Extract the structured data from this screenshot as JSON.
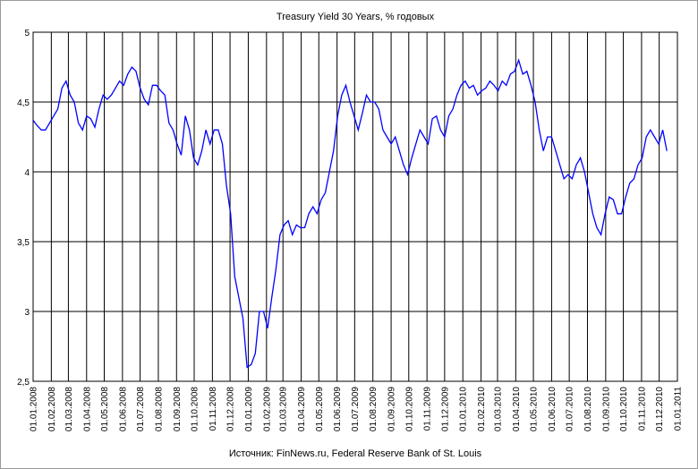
{
  "chart_data": {
    "type": "line",
    "title": "Treasury Yield 30 Years, % годовых",
    "source": "Источник: FinNews.ru, Federal Reserve Bank of St. Louis",
    "ylim": [
      2.5,
      5
    ],
    "y_ticks": [
      "2,5",
      "3",
      "3,5",
      "4",
      "4,5",
      "5"
    ],
    "x_ticks": [
      "01.01.2008",
      "01.02.2008",
      "01.03.2008",
      "01.04.2008",
      "01.05.2008",
      "01.06.2008",
      "01.07.2008",
      "01.08.2008",
      "01.09.2008",
      "01.10.2008",
      "01.11.2008",
      "01.12.2008",
      "01.01.2009",
      "01.02.2009",
      "01.03.2009",
      "01.04.2009",
      "01.05.2009",
      "01.06.2009",
      "01.07.2009",
      "01.08.2009",
      "01.09.2009",
      "01.10.2009",
      "01.11.2009",
      "01.12.2009",
      "01.01.2010",
      "01.02.2010",
      "01.03.2010",
      "01.04.2010",
      "01.05.2010",
      "01.06.2010",
      "01.07.2010",
      "01.08.2010",
      "01.09.2010",
      "01.10.2010",
      "01.11.2010",
      "01.12.2010",
      "01.01.2011"
    ],
    "grid": true,
    "legend": "none",
    "line_color": "#0000ff",
    "series": [
      {
        "x": [
          "2008-01-01",
          "2008-01-08",
          "2008-01-15",
          "2008-01-22",
          "2008-01-29",
          "2008-02-05",
          "2008-02-12",
          "2008-02-19",
          "2008-02-26",
          "2008-03-04",
          "2008-03-11",
          "2008-03-18",
          "2008-03-25",
          "2008-04-01",
          "2008-04-08",
          "2008-04-15",
          "2008-04-22",
          "2008-04-29",
          "2008-05-06",
          "2008-05-13",
          "2008-05-20",
          "2008-05-27",
          "2008-06-03",
          "2008-06-10",
          "2008-06-17",
          "2008-06-24",
          "2008-07-01",
          "2008-07-08",
          "2008-07-15",
          "2008-07-22",
          "2008-07-29",
          "2008-08-05",
          "2008-08-12",
          "2008-08-19",
          "2008-08-26",
          "2008-09-02",
          "2008-09-09",
          "2008-09-16",
          "2008-09-23",
          "2008-09-30",
          "2008-10-07",
          "2008-10-14",
          "2008-10-21",
          "2008-10-28",
          "2008-11-04",
          "2008-11-11",
          "2008-11-18",
          "2008-11-25",
          "2008-12-02",
          "2008-12-09",
          "2008-12-16",
          "2008-12-23",
          "2008-12-30",
          "2009-01-06",
          "2009-01-13",
          "2009-01-20",
          "2009-01-27",
          "2009-02-03",
          "2009-02-10",
          "2009-02-17",
          "2009-02-24",
          "2009-03-03",
          "2009-03-10",
          "2009-03-17",
          "2009-03-24",
          "2009-03-31",
          "2009-04-07",
          "2009-04-14",
          "2009-04-21",
          "2009-04-28",
          "2009-05-05",
          "2009-05-12",
          "2009-05-19",
          "2009-05-26",
          "2009-06-02",
          "2009-06-09",
          "2009-06-16",
          "2009-06-23",
          "2009-06-30",
          "2009-07-07",
          "2009-07-14",
          "2009-07-21",
          "2009-07-28",
          "2009-08-04",
          "2009-08-11",
          "2009-08-18",
          "2009-08-25",
          "2009-09-01",
          "2009-09-08",
          "2009-09-15",
          "2009-09-22",
          "2009-09-29",
          "2009-10-06",
          "2009-10-13",
          "2009-10-20",
          "2009-10-27",
          "2009-11-03",
          "2009-11-10",
          "2009-11-17",
          "2009-11-24",
          "2009-12-01",
          "2009-12-08",
          "2009-12-15",
          "2009-12-22",
          "2009-12-29",
          "2010-01-05",
          "2010-01-12",
          "2010-01-19",
          "2010-01-26",
          "2010-02-02",
          "2010-02-09",
          "2010-02-16",
          "2010-02-23",
          "2010-03-02",
          "2010-03-09",
          "2010-03-16",
          "2010-03-23",
          "2010-03-30",
          "2010-04-06",
          "2010-04-13",
          "2010-04-20",
          "2010-04-27",
          "2010-05-04",
          "2010-05-11",
          "2010-05-18",
          "2010-05-25",
          "2010-06-01",
          "2010-06-08",
          "2010-06-15",
          "2010-06-22",
          "2010-06-29",
          "2010-07-06",
          "2010-07-13",
          "2010-07-20",
          "2010-07-27",
          "2010-08-03",
          "2010-08-10",
          "2010-08-17",
          "2010-08-24",
          "2010-08-31",
          "2010-09-07",
          "2010-09-14",
          "2010-09-21",
          "2010-09-28",
          "2010-10-05",
          "2010-10-12",
          "2010-10-19",
          "2010-10-26",
          "2010-11-02",
          "2010-11-09",
          "2010-11-16",
          "2010-11-23",
          "2010-11-30",
          "2010-12-07",
          "2010-12-14"
        ],
        "values": [
          4.37,
          4.33,
          4.3,
          4.3,
          4.35,
          4.4,
          4.45,
          4.6,
          4.65,
          4.55,
          4.5,
          4.35,
          4.3,
          4.4,
          4.38,
          4.32,
          4.45,
          4.55,
          4.52,
          4.55,
          4.6,
          4.65,
          4.62,
          4.7,
          4.75,
          4.72,
          4.6,
          4.52,
          4.48,
          4.62,
          4.62,
          4.58,
          4.55,
          4.35,
          4.3,
          4.2,
          4.12,
          4.4,
          4.3,
          4.1,
          4.05,
          4.15,
          4.3,
          4.2,
          4.3,
          4.3,
          4.2,
          3.9,
          3.7,
          3.25,
          3.1,
          2.95,
          2.6,
          2.62,
          2.7,
          3.0,
          3.0,
          2.88,
          3.1,
          3.3,
          3.55,
          3.62,
          3.65,
          3.55,
          3.62,
          3.6,
          3.6,
          3.7,
          3.75,
          3.7,
          3.8,
          3.85,
          4.0,
          4.15,
          4.4,
          4.55,
          4.62,
          4.5,
          4.4,
          4.3,
          4.42,
          4.55,
          4.5,
          4.5,
          4.45,
          4.3,
          4.25,
          4.2,
          4.25,
          4.15,
          4.05,
          3.98,
          4.1,
          4.2,
          4.3,
          4.25,
          4.2,
          4.38,
          4.4,
          4.3,
          4.25,
          4.4,
          4.45,
          4.55,
          4.62,
          4.65,
          4.6,
          4.62,
          4.55,
          4.58,
          4.6,
          4.65,
          4.62,
          4.58,
          4.65,
          4.62,
          4.7,
          4.72,
          4.8,
          4.7,
          4.72,
          4.62,
          4.5,
          4.3,
          4.15,
          4.25,
          4.25,
          4.15,
          4.05,
          3.95,
          3.98,
          3.95,
          4.05,
          4.1,
          4.0,
          3.85,
          3.7,
          3.6,
          3.55,
          3.7,
          3.82,
          3.8,
          3.7,
          3.7,
          3.82,
          3.92,
          3.95,
          4.05,
          4.1,
          4.25,
          4.3,
          4.25,
          4.2,
          4.3,
          4.15
        ]
      }
    ]
  }
}
